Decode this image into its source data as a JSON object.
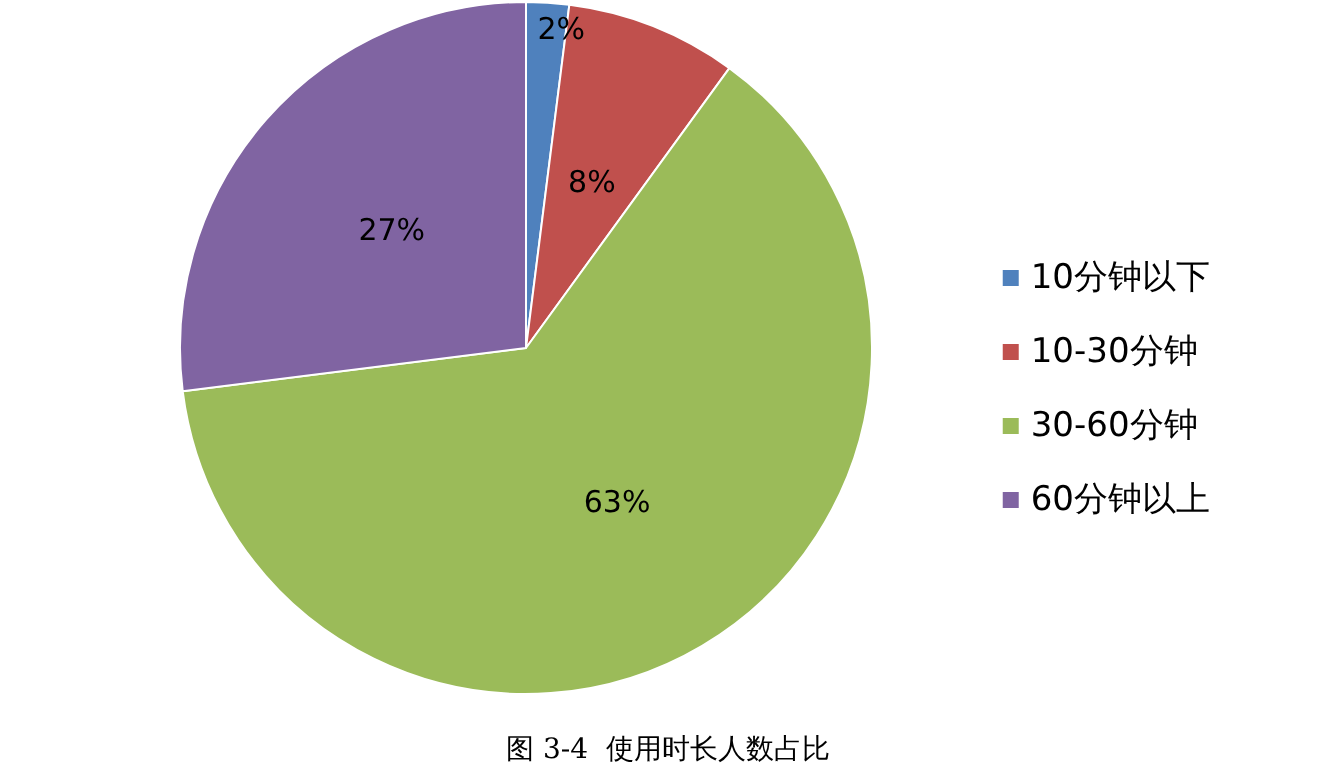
{
  "chart_data": {
    "type": "pie",
    "title": "图 3-4  使用时长人数占比",
    "categories": [
      "10分钟以下",
      "10-30分钟",
      "30-60分钟",
      "60分钟以上"
    ],
    "values": [
      2,
      8,
      63,
      27
    ],
    "value_labels": [
      "2%",
      "8%",
      "63%",
      "27%"
    ],
    "colors": [
      "#4f81bd",
      "#c0504d",
      "#9bbb59",
      "#8064a2"
    ],
    "legend": "right"
  }
}
